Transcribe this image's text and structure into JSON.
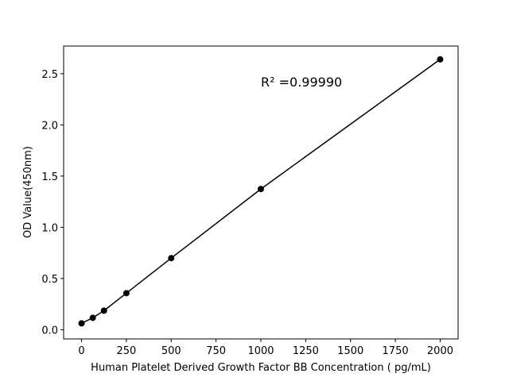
{
  "chart_data": {
    "type": "line",
    "xlabel": "Human Platelet Derived Growth Factor BB Concentration ( pg/mL)",
    "ylabel": "OD Value(450nm)",
    "annotation": "R² =0.99990",
    "x": [
      0,
      62.5,
      125,
      250,
      500,
      1000,
      2000
    ],
    "series": [
      {
        "name": "OD",
        "color": "#000000",
        "values": [
          0.062,
          0.116,
          0.186,
          0.357,
          0.699,
          1.374,
          2.64
        ]
      }
    ],
    "xlim": [
      -100,
      2100
    ],
    "ylim": [
      -0.09,
      2.77
    ],
    "xticks": [
      0,
      250,
      500,
      750,
      1000,
      1250,
      1500,
      1750,
      2000
    ],
    "yticks": [
      {
        "value": 0,
        "label": "0.0"
      },
      0.5,
      {
        "value": 1,
        "label": "1.0"
      },
      1.5,
      {
        "value": 2,
        "label": "2.0"
      },
      2.5
    ],
    "grid": false
  }
}
